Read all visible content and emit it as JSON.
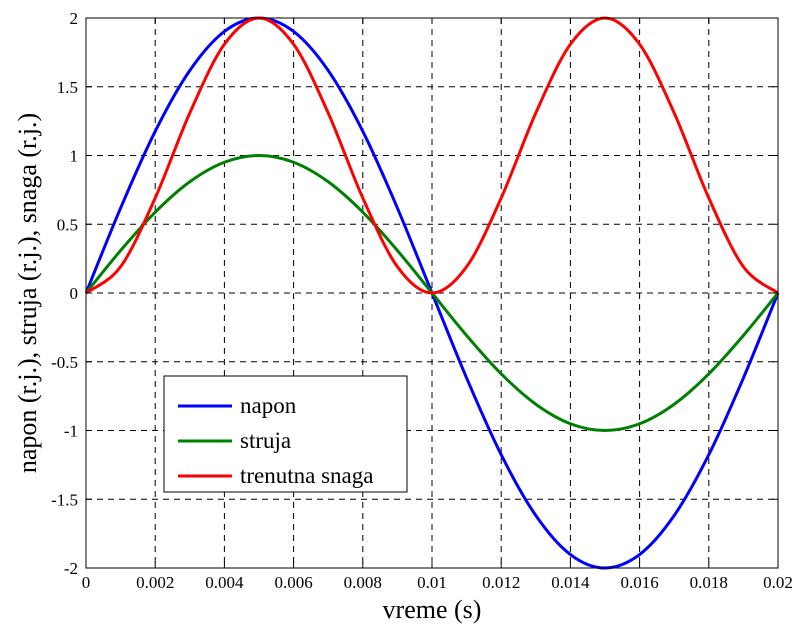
{
  "chart_data": {
    "type": "line",
    "title": "",
    "xlabel": "vreme (s)",
    "ylabel": "napon (r.j.), struja (r.j.), snaga (r.j.)",
    "xlim": [
      0,
      0.02
    ],
    "ylim": [
      -2,
      2
    ],
    "grid": true,
    "legend_position": "bottom-left",
    "x_ticks": [
      0,
      0.002,
      0.004,
      0.006,
      0.008,
      0.01,
      0.012,
      0.014,
      0.016,
      0.018,
      0.02
    ],
    "x_tick_labels": [
      "0",
      "0.002",
      "0.004",
      "0.006",
      "0.008",
      "0.01",
      "0.012",
      "0.014",
      "0.016",
      "0.018",
      "0.02"
    ],
    "y_ticks": [
      2,
      1.5,
      1,
      0.5,
      0,
      -0.5,
      -1,
      -1.5,
      -2
    ],
    "y_tick_labels": [
      "2",
      "1.5",
      "1",
      "0.5",
      "0",
      "-0.5",
      "-1",
      "-1.5",
      "-2"
    ],
    "x": [
      0,
      0.001,
      0.002,
      0.003,
      0.004,
      0.005,
      0.006,
      0.007,
      0.008,
      0.009,
      0.01,
      0.011,
      0.012,
      0.013,
      0.014,
      0.015,
      0.016,
      0.017,
      0.018,
      0.019,
      0.02
    ],
    "series": [
      {
        "name": "napon",
        "color": "#0000ff",
        "values": [
          0,
          0.618,
          1.176,
          1.618,
          1.902,
          2.0,
          1.902,
          1.618,
          1.176,
          0.618,
          0,
          -0.618,
          -1.176,
          -1.618,
          -1.902,
          -2.0,
          -1.902,
          -1.618,
          -1.176,
          -0.618,
          0
        ]
      },
      {
        "name": "struja",
        "color": "#008000",
        "values": [
          0,
          0.309,
          0.588,
          0.809,
          0.951,
          1.0,
          0.951,
          0.809,
          0.588,
          0.309,
          0,
          -0.309,
          -0.588,
          -0.809,
          -0.951,
          -1.0,
          -0.951,
          -0.809,
          -0.588,
          -0.309,
          0
        ]
      },
      {
        "name": "trenutna snaga",
        "color": "#ff0000",
        "values": [
          0,
          0.191,
          0.691,
          1.309,
          1.809,
          2.0,
          1.809,
          1.309,
          0.691,
          0.191,
          0,
          0.191,
          0.691,
          1.309,
          1.809,
          2.0,
          1.809,
          1.309,
          0.691,
          0.191,
          0
        ]
      }
    ]
  }
}
